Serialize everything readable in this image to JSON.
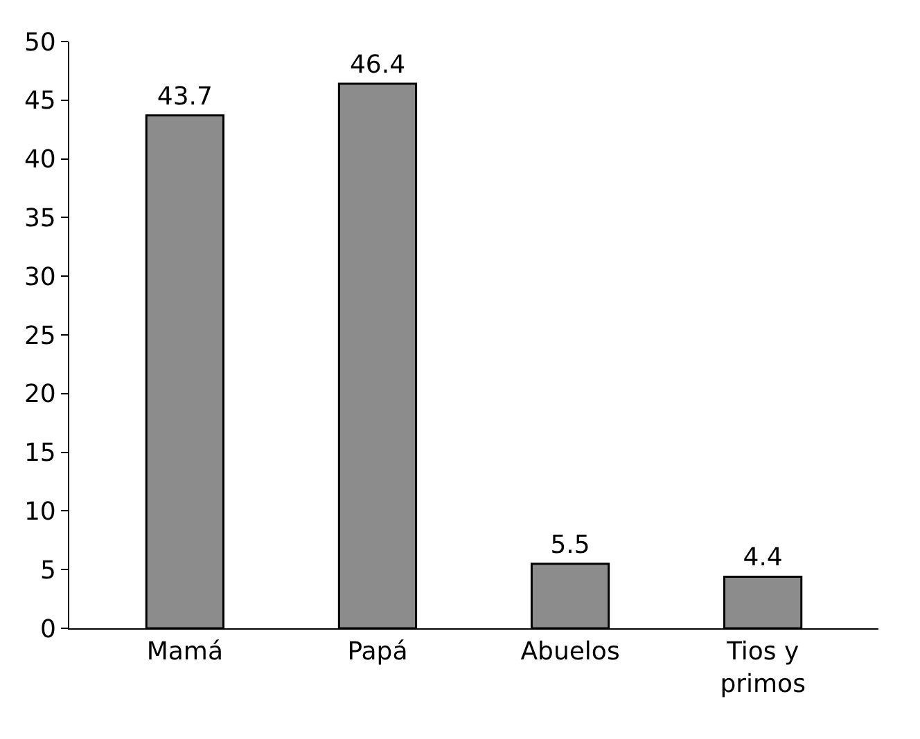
{
  "chart_data": {
    "type": "bar",
    "categories": [
      "Mamá",
      "Papá",
      "Abuelos",
      "Tios y primos"
    ],
    "values": [
      43.7,
      46.4,
      5.5,
      4.4
    ],
    "color": "#8c8c8c",
    "ylim": [
      0,
      50
    ],
    "yticks": [
      0,
      5,
      10,
      15,
      20,
      25,
      30,
      35,
      40,
      45,
      50
    ],
    "data_labels": true
  }
}
